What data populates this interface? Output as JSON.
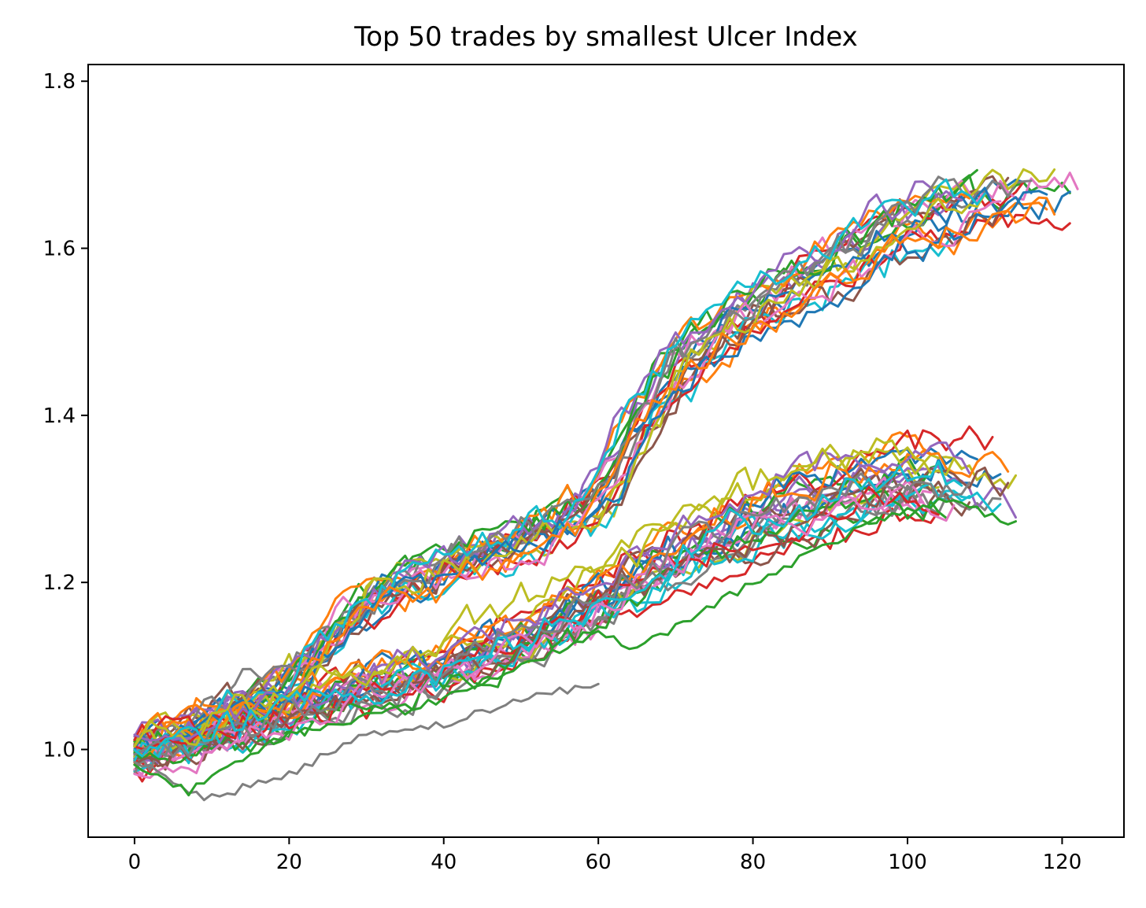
{
  "chart_data": {
    "type": "line",
    "title": "Top 50 trades by smallest Ulcer Index",
    "xlabel": "",
    "ylabel": "",
    "xlim": [
      -6,
      128
    ],
    "ylim": [
      0.895,
      1.82
    ],
    "x_ticks": [
      0,
      20,
      40,
      60,
      80,
      100,
      120
    ],
    "y_ticks": [
      1.0,
      1.2,
      1.4,
      1.6,
      1.8
    ],
    "x_tick_labels": [
      "0",
      "20",
      "40",
      "60",
      "80",
      "100",
      "120"
    ],
    "y_tick_labels": [
      "1.0",
      "1.2",
      "1.4",
      "1.6",
      "1.8"
    ],
    "grid": false,
    "legend": "none",
    "series_colors": [
      "#1f77b4",
      "#ff7f0e",
      "#2ca02c",
      "#d62728",
      "#9467bd",
      "#8c564b",
      "#e377c2",
      "#7f7f7f",
      "#bcbd22",
      "#17becf"
    ],
    "series_count": 50,
    "groups": [
      {
        "description": "upper cluster",
        "count": 22,
        "end_x_range": [
          106,
          122
        ],
        "waypoints": [
          [
            0,
            1.0
          ],
          [
            10,
            1.04
          ],
          [
            20,
            1.08
          ],
          [
            30,
            1.18
          ],
          [
            40,
            1.22
          ],
          [
            50,
            1.25
          ],
          [
            60,
            1.3
          ],
          [
            70,
            1.46
          ],
          [
            80,
            1.53
          ],
          [
            90,
            1.58
          ],
          [
            100,
            1.63
          ],
          [
            110,
            1.66
          ],
          [
            122,
            1.68
          ]
        ],
        "spread": 0.035
      },
      {
        "description": "lower cluster",
        "count": 28,
        "end_x_range": [
          102,
          114
        ],
        "waypoints": [
          [
            0,
            1.0
          ],
          [
            10,
            1.02
          ],
          [
            20,
            1.05
          ],
          [
            30,
            1.08
          ],
          [
            40,
            1.1
          ],
          [
            50,
            1.14
          ],
          [
            60,
            1.19
          ],
          [
            70,
            1.24
          ],
          [
            80,
            1.28
          ],
          [
            90,
            1.31
          ],
          [
            100,
            1.33
          ],
          [
            110,
            1.32
          ],
          [
            114,
            1.3
          ]
        ],
        "spread": 0.035
      },
      {
        "description": "lowest grey trade",
        "count": 1,
        "end_x_range": [
          60,
          60
        ],
        "waypoints": [
          [
            0,
            0.99
          ],
          [
            9,
            0.94
          ],
          [
            20,
            0.97
          ],
          [
            30,
            1.02
          ],
          [
            40,
            1.03
          ],
          [
            50,
            1.06
          ],
          [
            60,
            1.08
          ]
        ],
        "spread": 0.0
      },
      {
        "description": "lower green trade",
        "count": 1,
        "end_x_range": [
          114,
          114
        ],
        "waypoints": [
          [
            0,
            0.98
          ],
          [
            7,
            0.95
          ],
          [
            20,
            1.02
          ],
          [
            40,
            1.06
          ],
          [
            60,
            1.14
          ],
          [
            65,
            1.12
          ],
          [
            80,
            1.2
          ],
          [
            95,
            1.27
          ],
          [
            105,
            1.3
          ],
          [
            114,
            1.27
          ]
        ],
        "spread": 0.0
      }
    ]
  }
}
